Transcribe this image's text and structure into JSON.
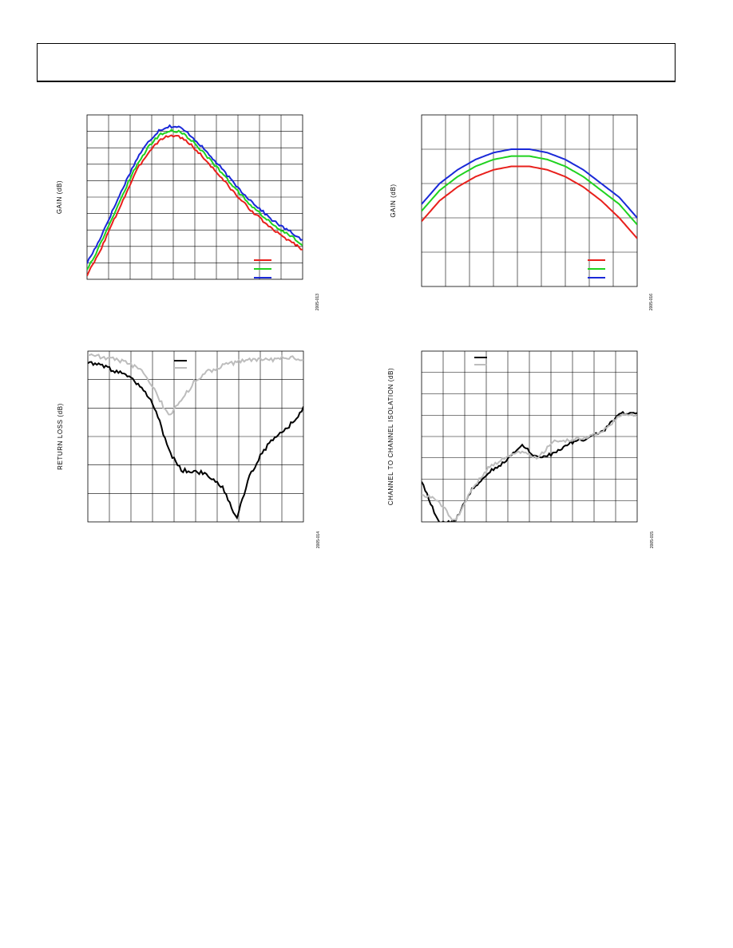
{
  "page": {
    "header_title": ""
  },
  "chart_data": [
    {
      "type": "line",
      "id": "chart1",
      "ylabel": "GAIN (dB)",
      "figure_code": "2005-013",
      "grid": true,
      "x_divisions": 10,
      "y_divisions": 10,
      "legend": {
        "placement": "bottom-right",
        "colors": [
          "#e8201c",
          "#1fd21f",
          "#1a29d8"
        ]
      },
      "series": [
        {
          "color": "#e8201c",
          "values": [
            0.4,
            2.2,
            4.4,
            6.6,
            8.8,
            10.9,
            12.4,
            13.5,
            14.0,
            13.9,
            13.2,
            12.2,
            11.1,
            10.0,
            8.8,
            7.7,
            6.7,
            5.8,
            4.9,
            4.2,
            3.6,
            2.9
          ]
        },
        {
          "color": "#1fd21f",
          "values": [
            1.0,
            2.8,
            5.0,
            7.2,
            9.4,
            11.4,
            12.9,
            14.0,
            14.5,
            14.4,
            13.7,
            12.7,
            11.6,
            10.5,
            9.3,
            8.2,
            7.2,
            6.3,
            5.4,
            4.7,
            4.1,
            3.4
          ]
        },
        {
          "color": "#1a29d8",
          "values": [
            1.6,
            3.4,
            5.6,
            7.8,
            10.0,
            12.0,
            13.4,
            14.5,
            14.9,
            14.8,
            14.1,
            13.1,
            12.0,
            10.9,
            9.7,
            8.6,
            7.6,
            6.7,
            5.8,
            5.1,
            4.5,
            3.8
          ]
        }
      ]
    },
    {
      "type": "line",
      "id": "chart2",
      "ylabel": "GAIN (dB)",
      "figure_code": "2005-016",
      "grid": true,
      "x_divisions": 9,
      "y_divisions": 5,
      "legend": {
        "placement": "bottom-right",
        "colors": [
          "#e8201c",
          "#1fd21f",
          "#1a29d8"
        ]
      },
      "series": [
        {
          "color": "#e8201c",
          "values": [
            1.9,
            2.5,
            2.9,
            3.2,
            3.4,
            3.5,
            3.5,
            3.4,
            3.2,
            2.9,
            2.5,
            2.0,
            1.4
          ]
        },
        {
          "color": "#1fd21f",
          "values": [
            2.2,
            2.8,
            3.2,
            3.5,
            3.7,
            3.8,
            3.8,
            3.7,
            3.5,
            3.2,
            2.8,
            2.4,
            1.8
          ]
        },
        {
          "color": "#1a29d8",
          "values": [
            2.4,
            3.0,
            3.4,
            3.7,
            3.9,
            4.0,
            4.0,
            3.9,
            3.7,
            3.4,
            3.0,
            2.6,
            2.0
          ]
        }
      ]
    },
    {
      "type": "line",
      "id": "chart3",
      "ylabel": "RETURN LOSS (dB)",
      "figure_code": "2005-014",
      "grid": true,
      "x_divisions": 10,
      "y_divisions": 6,
      "legend": {
        "placement": "top-center",
        "colors": [
          "#000000",
          "#bdbdbd"
        ]
      },
      "series": [
        {
          "color": "#000000",
          "values": [
            5.6,
            5.5,
            5.3,
            5.1,
            4.7,
            4.0,
            2.5,
            1.8,
            1.8,
            1.6,
            1.2,
            0.1,
            1.6,
            2.5,
            3.0,
            3.4,
            4.0
          ]
        },
        {
          "color": "#bdbdbd",
          "values": [
            5.9,
            5.8,
            5.7,
            5.6,
            5.3,
            4.6,
            3.7,
            4.3,
            5.0,
            5.3,
            5.5,
            5.6,
            5.7,
            5.7,
            5.7,
            5.8,
            5.7
          ]
        }
      ]
    },
    {
      "type": "line",
      "id": "chart4",
      "ylabel": "CHANNEL TO CHANNEL ISOLATION (dB)",
      "figure_code": "2005-015",
      "grid": true,
      "x_divisions": 10,
      "y_divisions": 8,
      "legend": {
        "placement": "top-left",
        "colors": [
          "#000000",
          "#bdbdbd"
        ]
      },
      "series": [
        {
          "color": "#000000",
          "values": [
            1.9,
            0.0,
            0.0,
            1.5,
            2.3,
            2.8,
            3.6,
            3.0,
            3.2,
            3.7,
            3.9,
            4.3,
            5.1,
            5.1
          ]
        },
        {
          "color": "#bdbdbd",
          "values": [
            1.3,
            1.0,
            0.0,
            1.5,
            2.5,
            3.0,
            3.3,
            3.0,
            3.8,
            3.8,
            4.0,
            4.3,
            5.0,
            5.0
          ]
        }
      ]
    }
  ]
}
